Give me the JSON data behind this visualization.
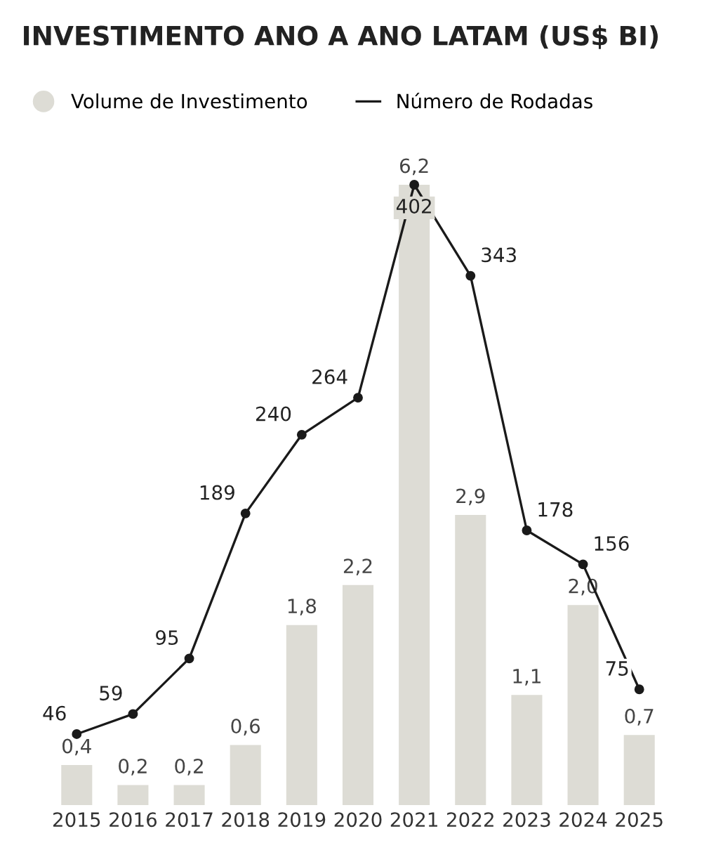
{
  "chart_data": {
    "type": "bar",
    "title": "INVESTIMENTO ANO A ANO LATAM (US$ BI)",
    "categories": [
      "2015",
      "2016",
      "2017",
      "2018",
      "2019",
      "2020",
      "2021",
      "2022",
      "2023",
      "2024",
      "2025"
    ],
    "series": [
      {
        "name": "Volume de Investimento",
        "color": "#dddcd5",
        "values": [
          0.4,
          0.2,
          0.2,
          0.6,
          1.8,
          2.2,
          6.2,
          2.9,
          1.1,
          2.0,
          0.7
        ],
        "value_labels": [
          "0,4",
          "0,2",
          "0,2",
          "0,6",
          "1,8",
          "2,2",
          "6,2",
          "2,9",
          "1,1",
          "2,0",
          "0,7"
        ]
      },
      {
        "name": "Número de Rodadas",
        "type": "line",
        "axis": "y2",
        "color": "#1a1a1a",
        "marker": "circle",
        "values": [
          46,
          59,
          95,
          189,
          240,
          264,
          402,
          343,
          178,
          156,
          75
        ],
        "value_labels": [
          "46",
          "59",
          "95",
          "189",
          "240",
          "264",
          "402",
          "343",
          "178",
          "156",
          "75"
        ]
      }
    ],
    "tick_labels": "x",
    "legend": "top left",
    "grid": false
  }
}
